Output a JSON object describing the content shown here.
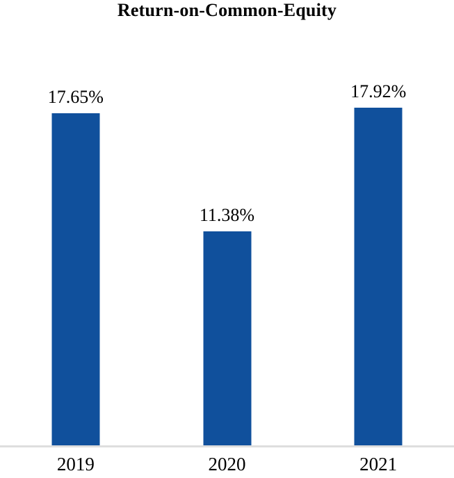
{
  "chart_data": {
    "type": "bar",
    "title": "Return-on-Common-Equity",
    "categories": [
      "2019",
      "2020",
      "2021"
    ],
    "values": [
      17.65,
      11.38,
      17.92
    ],
    "data_labels": [
      "17.65%",
      "11.38%",
      "17.92%"
    ],
    "xlabel": "",
    "ylabel": "",
    "ylim": [
      0,
      20
    ],
    "grid": false,
    "legend": false,
    "y_axis_visible": false,
    "colors": {
      "bar": "#10509C",
      "axis_line": "#DEDEDE",
      "text": "#000000",
      "background": "#FFFFFF"
    }
  }
}
